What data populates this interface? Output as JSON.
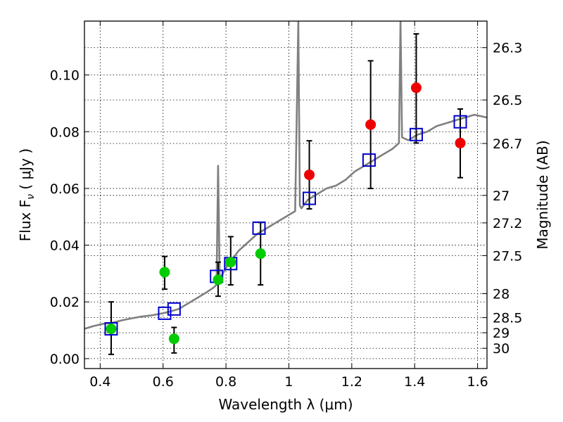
{
  "chart_data": {
    "type": "scatter",
    "title": "",
    "xlabel": "Wavelength  λ (μm)",
    "ylabel": "Flux  F",
    "ylabel_subscript": "ν",
    "ylabel_unit": "  ( μJy )",
    "y2label": "Magnitude (AB)",
    "xlim": [
      0.35,
      1.63
    ],
    "ylim": [
      -0.0035,
      0.119
    ],
    "grid": true,
    "x_ticks": [
      0.4,
      0.6,
      0.8,
      1.0,
      1.2,
      1.4,
      1.6
    ],
    "x_tick_labels": [
      "0.4",
      "0.6",
      "0.8",
      "1",
      "1.2",
      "1.4",
      "1.6"
    ],
    "y_ticks": [
      0.0,
      0.02,
      0.04,
      0.06,
      0.08,
      0.1
    ],
    "y_tick_labels": [
      "0.00",
      "0.02",
      "0.04",
      "0.06",
      "0.08",
      "0.10"
    ],
    "mag_ticks": [
      26.3,
      26.5,
      26.7,
      27,
      27.2,
      27.5,
      28,
      28.5,
      29,
      30
    ],
    "mag_tick_labels": [
      "26.3",
      "26.5",
      "26.7",
      "27",
      "27.2",
      "27.5",
      "28",
      "28.5",
      "29",
      "30"
    ],
    "colors": {
      "template": "#808080",
      "model_squares": "#0000cc",
      "detected": "#00cc00",
      "upper": "#ee0000",
      "errorbar": "#000000"
    },
    "template_spectrum": {
      "x": [
        0.35,
        0.38,
        0.41,
        0.44,
        0.47,
        0.5,
        0.53,
        0.56,
        0.59,
        0.62,
        0.65,
        0.68,
        0.71,
        0.74,
        0.76,
        0.77,
        0.775,
        0.78,
        0.8,
        0.82,
        0.84,
        0.86,
        0.88,
        0.9,
        0.93,
        0.96,
        0.99,
        1.02,
        1.03,
        1.035,
        1.04,
        1.06,
        1.09,
        1.12,
        1.15,
        1.18,
        1.21,
        1.24,
        1.27,
        1.3,
        1.33,
        1.35,
        1.355,
        1.36,
        1.38,
        1.41,
        1.44,
        1.47,
        1.5,
        1.53,
        1.56,
        1.59,
        1.63
      ],
      "y": [
        0.0105,
        0.0115,
        0.0123,
        0.0127,
        0.0135,
        0.0142,
        0.0148,
        0.0152,
        0.0158,
        0.0165,
        0.0175,
        0.0195,
        0.0215,
        0.0235,
        0.025,
        0.026,
        0.068,
        0.028,
        0.032,
        0.035,
        0.038,
        0.04,
        0.042,
        0.044,
        0.046,
        0.048,
        0.05,
        0.052,
        0.119,
        0.054,
        0.053,
        0.056,
        0.058,
        0.06,
        0.061,
        0.063,
        0.066,
        0.068,
        0.07,
        0.072,
        0.074,
        0.076,
        0.119,
        0.078,
        0.077,
        0.079,
        0.08,
        0.082,
        0.083,
        0.084,
        0.085,
        0.086,
        0.085
      ]
    },
    "model_squares": {
      "x": [
        0.435,
        0.605,
        0.635,
        0.77,
        0.815,
        0.905,
        1.065,
        1.255,
        1.405,
        1.545
      ],
      "y": [
        0.0105,
        0.016,
        0.0175,
        0.029,
        0.0335,
        0.046,
        0.0565,
        0.07,
        0.079,
        0.0835
      ]
    },
    "detections": {
      "x": [
        0.435,
        0.605,
        0.635,
        0.775,
        0.815,
        0.91
      ],
      "y": [
        0.0105,
        0.0305,
        0.007,
        0.0278,
        0.034,
        0.037
      ],
      "yerr_low": [
        0.0015,
        0.0245,
        0.002,
        0.022,
        0.026,
        0.026
      ],
      "yerr_high": [
        0.02,
        0.036,
        0.011,
        0.034,
        0.043,
        0.048
      ]
    },
    "upper_limits": {
      "x": [
        1.065,
        1.26,
        1.405,
        1.545
      ],
      "y": [
        0.0648,
        0.0825,
        0.0955,
        0.076
      ],
      "yerr_low": [
        0.0528,
        0.06,
        0.076,
        0.0638
      ],
      "yerr_high": [
        0.0768,
        0.105,
        0.1145,
        0.088
      ]
    }
  }
}
